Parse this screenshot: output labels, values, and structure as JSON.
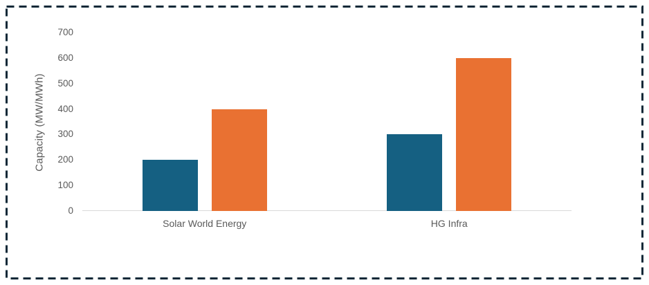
{
  "chart_data": {
    "type": "bar",
    "title": "",
    "categories": [
      "Solar World Energy",
      "HG Infra"
    ],
    "series": [
      {
        "color": "#156082",
        "values": [
          200,
          300
        ]
      },
      {
        "color": "#E97132",
        "values": [
          400,
          600
        ]
      }
    ],
    "xlabel": "",
    "ylabel": "Capacity (MW/MWh)",
    "ylim": [
      0,
      700
    ],
    "yticks": [
      0,
      100,
      200,
      300,
      400,
      500,
      600,
      700
    ],
    "grid": false,
    "legend": "none"
  },
  "colors": {
    "background": "#ffffff",
    "frame_border": "#0f2837",
    "axis_line": "#d9d9d9",
    "tick_text": "#595959",
    "bar_series_1": "#156082",
    "bar_series_2": "#E97132"
  }
}
